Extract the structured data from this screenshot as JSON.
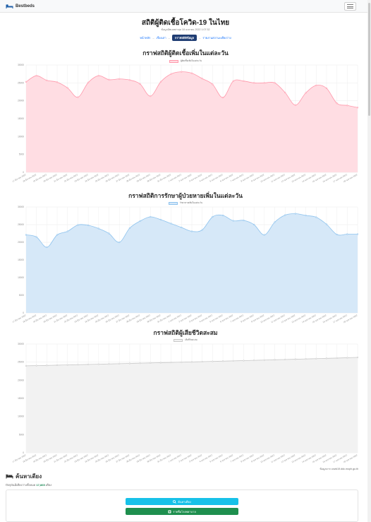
{
  "brand": {
    "name": "Bestbeds",
    "icon": "bed-icon"
  },
  "header": {
    "title": "สถิติผู้ติดเชื้อโควิด-19 ในไทย",
    "updated": "ข้อมูลอัพเดทล่าสุด 18 เมษายน 2022 1:07:32"
  },
  "nav": {
    "links": [
      "หน้าหลัก",
      "เรื่องเล่า",
      "กราฟสถิติข้อมูล",
      "รายงานสถานะเตียงว่าง"
    ],
    "active_index": 2,
    "separator": "–"
  },
  "colors": {
    "infected_fill": "#ffdde3",
    "infected_line": "#ff98ab",
    "recovered_fill": "#d6e8f8",
    "recovered_line": "#8ec3ee",
    "deaths_fill": "#f2f2f2",
    "deaths_line": "#c8c8c8",
    "button_search": "#17c1e8",
    "button_hospital": "#1e8f4e"
  },
  "chart_data": [
    {
      "type": "area",
      "title": "กราฟสถิติผู้ติดเชื้อเพิ่มในแต่ละวัน",
      "legend": "ผู้ติดเชื้อเพิ่มในแต่ละวัน",
      "legend_position": "top",
      "grid": true,
      "ylim": [
        0,
        30000
      ],
      "yticks": [
        0,
        5000,
        10000,
        15000,
        20000,
        25000,
        30000
      ],
      "categories": [
        "17 มีนาคม 2022",
        "18 มีนาคม 2022",
        "19 มีนาคม 2022",
        "20 มีนาคม 2022",
        "21 มีนาคม 2022",
        "22 มีนาคม 2022",
        "23 มีนาคม 2022",
        "24 มีนาคม 2022",
        "25 มีนาคม 2022",
        "26 มีนาคม 2022",
        "27 มีนาคม 2022",
        "28 มีนาคม 2022",
        "29 มีนาคม 2022",
        "30 มีนาคม 2022",
        "31 มีนาคม 2022",
        "1 เมษายน 2022",
        "2 เมษายน 2022",
        "3 เมษายน 2022",
        "4 เมษายน 2022",
        "5 เมษายน 2022",
        "6 เมษายน 2022",
        "7 เมษายน 2022",
        "8 เมษายน 2022",
        "9 เมษายน 2022",
        "10 เมษายน 2022",
        "11 เมษายน 2022",
        "12 เมษายน 2022",
        "13 เมษายน 2022",
        "14 เมษายน 2022",
        "15 เมษายน 2022",
        "16 เมษายน 2022",
        "17 เมษายน 2022",
        "18 เมษายน 2022"
      ],
      "values": [
        25300,
        27000,
        25700,
        25200,
        23600,
        21000,
        25100,
        27000,
        25900,
        26100,
        25800,
        24700,
        21300,
        25300,
        27500,
        28100,
        27700,
        26200,
        24600,
        20900,
        25500,
        25500,
        25000,
        25000,
        25000,
        22300,
        18800,
        22200,
        24300,
        23500,
        19300,
        18700,
        18100
      ]
    },
    {
      "type": "area",
      "title": "กราฟสถิติการรักษาผู้ป่วยหายเพิ่มในแต่ละวัน",
      "legend": "รักษาหายเพิ่มในแต่ละวัน",
      "legend_position": "top",
      "grid": true,
      "ylim": [
        0,
        30000
      ],
      "yticks": [
        0,
        5000,
        10000,
        15000,
        20000,
        25000,
        30000
      ],
      "categories": [
        "17 มีนาคม 2022",
        "18 มีนาคม 2022",
        "19 มีนาคม 2022",
        "20 มีนาคม 2022",
        "21 มีนาคม 2022",
        "22 มีนาคม 2022",
        "23 มีนาคม 2022",
        "24 มีนาคม 2022",
        "25 มีนาคม 2022",
        "26 มีนาคม 2022",
        "27 มีนาคม 2022",
        "28 มีนาคม 2022",
        "29 มีนาคม 2022",
        "30 มีนาคม 2022",
        "31 มีนาคม 2022",
        "1 เมษายน 2022",
        "2 เมษายน 2022",
        "3 เมษายน 2022",
        "4 เมษายน 2022",
        "5 เมษายน 2022",
        "6 เมษายน 2022",
        "7 เมษายน 2022",
        "8 เมษายน 2022",
        "9 เมษายน 2022",
        "10 เมษายน 2022",
        "11 เมษายน 2022",
        "12 เมษายน 2022",
        "13 เมษายน 2022",
        "14 เมษายน 2022",
        "15 เมษายน 2022",
        "16 เมษายน 2022",
        "17 เมษายน 2022",
        "18 เมษายน 2022"
      ],
      "values": [
        22100,
        21500,
        18600,
        22100,
        23100,
        24900,
        24800,
        23900,
        22500,
        20000,
        24000,
        26000,
        27200,
        26400,
        25300,
        24200,
        23100,
        23500,
        27200,
        27600,
        26100,
        26200,
        25000,
        22100,
        25700,
        27700,
        28100,
        27600,
        27100,
        25100,
        22200,
        22300,
        22300
      ]
    },
    {
      "type": "area",
      "title": "กราฟสถิติผู้เสียชีวิตสะสม",
      "legend": "เสียชีวิตสะสม",
      "legend_position": "top",
      "grid": true,
      "ylim": [
        0,
        30000
      ],
      "yticks": [
        0,
        5000,
        10000,
        15000,
        20000,
        25000,
        30000
      ],
      "categories": [
        "17 มีนาคม 2022",
        "18 มีนาคม 2022",
        "19 มีนาคม 2022",
        "20 มีนาคม 2022",
        "21 มีนาคม 2022",
        "22 มีนาคม 2022",
        "23 มีนาคม 2022",
        "24 มีนาคม 2022",
        "25 มีนาคม 2022",
        "26 มีนาคม 2022",
        "27 มีนาคม 2022",
        "28 มีนาคม 2022",
        "29 มีนาคม 2022",
        "30 มีนาคม 2022",
        "31 มีนาคม 2022",
        "1 เมษายน 2022",
        "2 เมษายน 2022",
        "3 เมษายน 2022",
        "4 เมษายน 2022",
        "5 เมษายน 2022",
        "6 เมษายน 2022",
        "7 เมษายน 2022",
        "8 เมษายน 2022",
        "9 เมษายน 2022",
        "10 เมษายน 2022",
        "11 เมษายน 2022",
        "12 เมษายน 2022",
        "13 เมษายน 2022",
        "14 เมษายน 2022",
        "15 เมษายน 2022",
        "16 เมษายน 2022",
        "17 เมษายน 2022",
        "18 เมษายน 2022"
      ],
      "values": [
        23980,
        24040,
        24100,
        24170,
        24230,
        24300,
        24370,
        24430,
        24500,
        24570,
        24640,
        24710,
        24780,
        24850,
        24920,
        24990,
        25060,
        25130,
        25200,
        25280,
        25350,
        25420,
        25500,
        25570,
        25650,
        25720,
        25800,
        25880,
        25960,
        26040,
        26120,
        26210,
        26300
      ]
    }
  ],
  "footer": {
    "source": "ข้อมูลจาก covid19.ddc.moph.go.th",
    "section_title": "ค้นหาเตียง",
    "beds_prefix": "ปัจจุบันมีเตียงว่างทั้งหมด",
    "beds_count": "17,865",
    "beds_suffix": "เตียง",
    "search_button": "ค้นหาเตียง",
    "hospital_button": "รายชื่อโรงพยาบาล"
  }
}
